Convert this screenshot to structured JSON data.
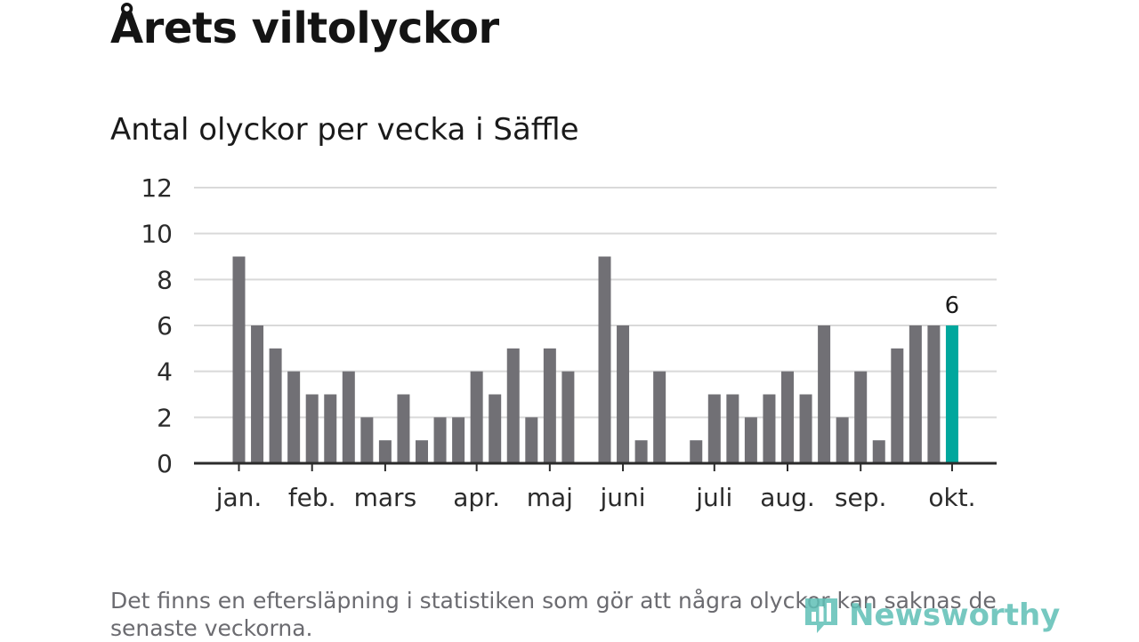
{
  "title": "Årets viltolyckor",
  "subtitle": "Antal olyckor per vecka i Säffle",
  "footnote": "Det finns en eftersläpning i statistiken som gör att några olyckor kan saknas de senaste veckorna.",
  "brand": "Newsworthy",
  "colors": {
    "bar": "#717075",
    "highlight": "#00a79d",
    "grid": "#d9d9d9",
    "axis": "#2b2b2b",
    "brand": "#5fbfb6"
  },
  "chart_data": {
    "type": "bar",
    "title": "Antal olyckor per vecka i Säffle",
    "xlabel": "",
    "ylabel": "",
    "ylim": [
      0,
      12
    ],
    "yticks": [
      0,
      2,
      4,
      6,
      8,
      10,
      12
    ],
    "grid": true,
    "weeks": [
      1,
      2,
      3,
      4,
      5,
      6,
      7,
      8,
      9,
      10,
      11,
      12,
      13,
      14,
      15,
      16,
      17,
      18,
      19,
      20,
      21,
      22,
      23,
      24,
      25,
      26,
      27,
      28,
      29,
      30,
      31,
      32,
      33,
      34,
      35,
      36,
      37,
      38,
      39,
      40
    ],
    "values": [
      9,
      6,
      5,
      4,
      3,
      3,
      4,
      2,
      1,
      3,
      1,
      2,
      2,
      4,
      3,
      5,
      2,
      5,
      4,
      0,
      9,
      6,
      1,
      4,
      0,
      1,
      3,
      3,
      2,
      3,
      4,
      3,
      6,
      2,
      4,
      1,
      5,
      6,
      6,
      6
    ],
    "highlight_index": 39,
    "highlight_label": "6",
    "month_ticks": [
      {
        "label": "jan.",
        "week": 1
      },
      {
        "label": "feb.",
        "week": 5
      },
      {
        "label": "mars",
        "week": 9
      },
      {
        "label": "apr.",
        "week": 14
      },
      {
        "label": "maj",
        "week": 18
      },
      {
        "label": "juni",
        "week": 22
      },
      {
        "label": "juli",
        "week": 27
      },
      {
        "label": "aug.",
        "week": 31
      },
      {
        "label": "sep.",
        "week": 35
      },
      {
        "label": "okt.",
        "week": 40
      }
    ]
  }
}
